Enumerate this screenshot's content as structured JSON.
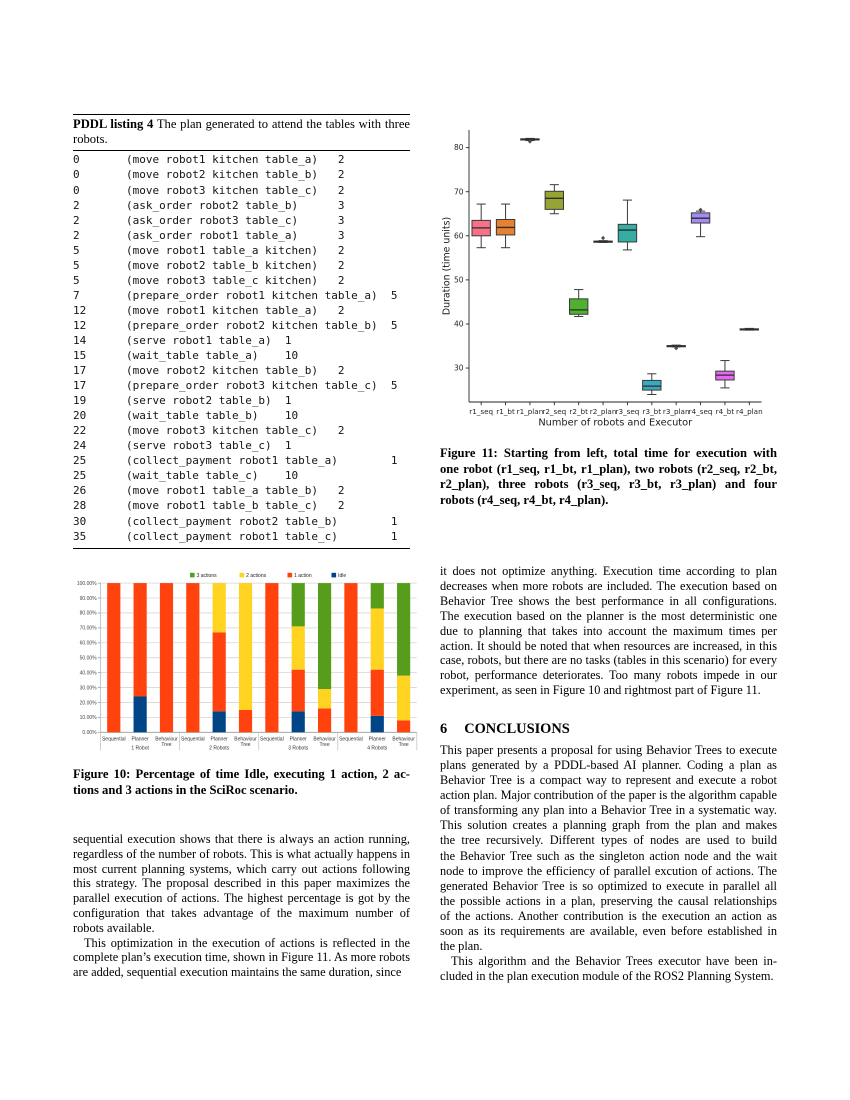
{
  "listing": {
    "label": "PDDL listing 4",
    "caption_line1_rest": " The plan generated to attend the tables with three",
    "caption_line2": "robots.",
    "lines": [
      "0\t(move robot1 kitchen table_a)\t2",
      "0\t(move robot2 kitchen table_b)\t2",
      "0\t(move robot3 kitchen table_c)\t2",
      "2\t(ask_order robot2 table_b)\t3",
      "2\t(ask_order robot3 table_c)\t3",
      "2\t(ask_order robot1 table_a)\t3",
      "5\t(move robot1 table_a kitchen)\t2",
      "5\t(move robot2 table_b kitchen)\t2",
      "5\t(move robot3 table_c kitchen)\t2",
      "7\t(prepare_order robot1 kitchen table_a)\t5",
      "12\t(move robot1 kitchen table_a)\t2",
      "12\t(prepare_order robot2 kitchen table_b)\t5",
      "14\t(serve robot1 table_a)\t1",
      "15\t(wait_table table_a)\t10",
      "17\t(move robot2 kitchen table_b)\t2",
      "17\t(prepare_order robot3 kitchen table_c)\t5",
      "19\t(serve robot2 table_b)\t1",
      "20\t(wait_table table_b)\t10",
      "22\t(move robot3 kitchen table_c)\t2",
      "24\t(serve robot3 table_c)\t1",
      "25\t(collect_payment robot1 table_a)\t1",
      "25\t(wait_table table_c)\t10",
      "26\t(move robot1 table_a table_b)\t2",
      "28\t(move robot1 table_b table_c)\t2",
      "30\t(collect_payment robot2 table_b)\t1",
      "35\t(collect_payment robot1 table_c)\t1"
    ]
  },
  "figure10": {
    "caption_lines": [
      "Figure 10: Percentage of time Idle, executing 1 action, 2 ac-",
      "tions and 3 actions in the SciRoc scenario."
    ]
  },
  "figure11": {
    "caption_lines": [
      "Figure 11: Starting from left, total time for execution with",
      "one robot (r1_seq, r1_bt, r1_plan), two robots (r2_seq, r2_bt,",
      "r2_plan), three robots (r3_seq, r3_bt, r3_plan) and four",
      "robots (r4_seq, r4_bt, r4_plan)."
    ]
  },
  "left_column": {
    "paragraphs": [
      {
        "indent": false,
        "lines": [
          "sequential execution shows that there is always an action running,",
          "regardless of the number of robots. This is what actually happens in",
          "most current planning systems, which carry out actions following",
          "this strategy. The proposal described in this paper maximizes the",
          "parallel execution of actions. The highest percentage is got by the",
          "configuration that takes advantage of the maximum number of",
          "robots available."
        ]
      },
      {
        "indent": true,
        "lines": [
          "This optimization in the execution of actions is reflected in the",
          "complete plan’s execution time, shown in Figure 11. As more robots",
          "are added, sequential execution maintains the same duration, since"
        ]
      }
    ]
  },
  "right_column": {
    "top_paragraphs": [
      {
        "indent": false,
        "lines": [
          "it does not optimize anything. Execution time according to plan",
          "decreases when more robots are included. The execution based on",
          "Behavior Tree shows the best performance in all configurations.",
          "The execution based on the planner is the most deterministic one",
          "due to planning that takes into account the maximum times per",
          "action. It should be noted that when resources are increased, in this",
          "case, robots, but there are no tasks (tables in this scenario) for every",
          "robot, performance deteriorates. Too many robots impede in our",
          "experiment, as seen in Figure 10 and rightmost part of Figure 11."
        ]
      }
    ],
    "section": {
      "number": "6",
      "title": "CONCLUSIONS"
    },
    "bottom_paragraphs": [
      {
        "indent": false,
        "lines": [
          "This paper presents a proposal for using Behavior Trees to execute",
          "plans generated by a PDDL-based AI planner. Coding a plan as",
          "Behavior Tree is a compact way to represent and execute a robot",
          "action plan. Major contribution of the paper is the algorithm capable",
          "of transforming any plan into a Behavior Tree in a systematic way.",
          "This solution creates a planning graph from the plan and makes",
          "the tree recursively. Different types of nodes are used to build",
          "the Behavior Tree such as the singleton action node and the wait",
          "node to improve the efficiency of parallel excution of actions. The",
          "generated Behavior Tree is so optimized to execute in parallel all",
          "the possible actions in a plan, preserving the causal relationships",
          "of the actions. Another contribution is the execution an action as",
          "soon as its requirements are available, even before established in",
          "the plan."
        ]
      },
      {
        "indent": true,
        "lines": [
          "This algorithm and the Behavior Trees executor have been in-",
          "cluded in the plan execution module of the ROS2 Planning System."
        ]
      }
    ]
  },
  "chart_data": [
    {
      "type": "stacked_bar",
      "figure": "Figure 10",
      "groups": [
        "1 Robot",
        "2 Robots",
        "3 Robots",
        "4 Robots"
      ],
      "bar_labels": [
        "Sequential",
        "Planner",
        "Behaviour Tree"
      ],
      "legend": [
        {
          "name": "3 actions",
          "color": "#579d1c"
        },
        {
          "name": "2 actions",
          "color": "#ffd320"
        },
        {
          "name": "1 action",
          "color": "#ff420e"
        },
        {
          "name": "Idle",
          "color": "#004586"
        }
      ],
      "stack_bottom_to_top": [
        "Idle",
        "1 action",
        "2 actions",
        "3 actions"
      ],
      "series": [
        {
          "name": "Idle",
          "color": "#004586",
          "values": [
            0,
            24,
            0,
            0,
            14,
            0,
            0,
            14,
            0,
            0,
            11,
            0
          ]
        },
        {
          "name": "1 action",
          "color": "#ff420e",
          "values": [
            100,
            76,
            100,
            100,
            53,
            15,
            100,
            28,
            16,
            100,
            31,
            8
          ]
        },
        {
          "name": "2 actions",
          "color": "#ffd320",
          "values": [
            0,
            0,
            0,
            0,
            33,
            85,
            0,
            29,
            13,
            0,
            41,
            30
          ]
        },
        {
          "name": "3 actions",
          "color": "#579d1c",
          "values": [
            0,
            0,
            0,
            0,
            0,
            0,
            0,
            29,
            71,
            0,
            17,
            62
          ]
        }
      ],
      "ylim": [
        0,
        100
      ],
      "ytick_step": 10,
      "ytick_labels": [
        "0.00%",
        "10.00%",
        "20.00%",
        "30.00%",
        "40.00%",
        "50.00%",
        "60.00%",
        "70.00%",
        "80.00%",
        "90.00%",
        "100.00%"
      ],
      "grid": true
    },
    {
      "type": "box",
      "figure": "Figure 11",
      "xlabel": "Number of robots and Executor",
      "ylabel": "Duration (time units)",
      "yticks": [
        30,
        40,
        50,
        60,
        70,
        80
      ],
      "ylim": [
        22.3,
        84
      ],
      "boxes": [
        {
          "label": "r1_seq",
          "color": "#f77189",
          "whislo": 57.3,
          "q1": 60.0,
          "med": 61.8,
          "q3": 63.5,
          "whishi": 67.2,
          "fliers": []
        },
        {
          "label": "r1_bt",
          "color": "#e68332",
          "whislo": 57.3,
          "q1": 60.2,
          "med": 61.9,
          "q3": 63.7,
          "whishi": 67.2,
          "fliers": []
        },
        {
          "label": "r1_plan",
          "color": "#bb9832",
          "whislo": 81.6,
          "q1": 81.8,
          "med": 81.9,
          "q3": 82.0,
          "whishi": 82.1,
          "fliers": [
            81.4
          ]
        },
        {
          "label": "r2_seq",
          "color": "#97a431",
          "whislo": 65.0,
          "q1": 66.0,
          "med": 68.5,
          "q3": 70.1,
          "whishi": 71.6,
          "fliers": []
        },
        {
          "label": "r2_bt",
          "color": "#50b131",
          "whislo": 41.7,
          "q1": 42.2,
          "med": 43.2,
          "q3": 45.7,
          "whishi": 47.8,
          "fliers": []
        },
        {
          "label": "r2_plan",
          "color": "#34ae91",
          "whislo": 58.5,
          "q1": 58.6,
          "med": 58.7,
          "q3": 58.8,
          "whishi": 58.9,
          "fliers": [
            59.5
          ]
        },
        {
          "label": "r3_seq",
          "color": "#36ada4",
          "whislo": 56.8,
          "q1": 58.6,
          "med": 61.3,
          "q3": 62.6,
          "whishi": 68.1,
          "fliers": []
        },
        {
          "label": "r3_bt",
          "color": "#38aabf",
          "whislo": 24.0,
          "q1": 25.0,
          "med": 25.9,
          "q3": 27.2,
          "whishi": 28.7,
          "fliers": []
        },
        {
          "label": "r3_plan",
          "color": "#3ba3ec",
          "whislo": 34.8,
          "q1": 34.9,
          "med": 35.0,
          "q3": 35.1,
          "whishi": 35.2,
          "fliers": [
            34.5
          ]
        },
        {
          "label": "r4_seq",
          "color": "#a48cf4",
          "whislo": 59.8,
          "q1": 62.9,
          "med": 64.0,
          "q3": 65.2,
          "whishi": 65.6,
          "fliers": [
            65.9
          ]
        },
        {
          "label": "r4_bt",
          "color": "#e866f4",
          "whislo": 25.5,
          "q1": 27.3,
          "med": 28.4,
          "q3": 29.3,
          "whishi": 31.7,
          "fliers": []
        },
        {
          "label": "r4_plan",
          "color": "#f565cc",
          "whislo": 38.6,
          "q1": 38.7,
          "med": 38.8,
          "q3": 38.9,
          "whishi": 39.0,
          "fliers": []
        }
      ]
    }
  ]
}
